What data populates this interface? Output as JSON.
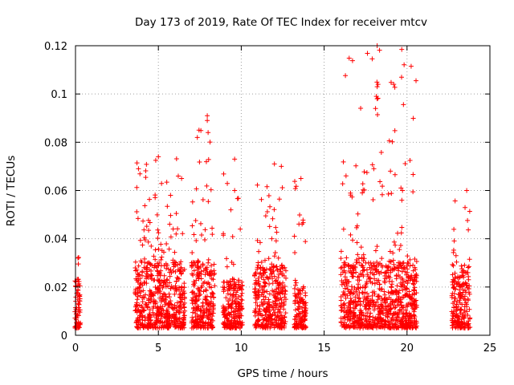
{
  "chart_data": {
    "type": "scatter",
    "title": "Day 173 of 2019, Rate Of TEC Index for receiver mtcv",
    "xlabel": "GPS time / hours",
    "ylabel": "ROTI / TECUs",
    "xlim": [
      0,
      25
    ],
    "ylim": [
      0,
      0.12
    ],
    "xticks": [
      0,
      5,
      10,
      15,
      20,
      25
    ],
    "xtick_labels": [
      "0",
      "5",
      "10",
      "15",
      "20",
      "25"
    ],
    "yticks": [
      0,
      0.02,
      0.04,
      0.06,
      0.08,
      0.1,
      0.12
    ],
    "ytick_labels": [
      "0",
      "0.02",
      "0.04",
      "0.06",
      "0.08",
      "0.1",
      "0.12"
    ],
    "grid": true,
    "marker": "+",
    "color": "#ff0000",
    "clusters": [
      {
        "x": [
          -0.05,
          0.3
        ],
        "dense_max": 0.022,
        "peak": 0.033
      },
      {
        "x": [
          3.6,
          6.6
        ],
        "dense_max": 0.03,
        "peak": 0.074
      },
      {
        "x": [
          7.0,
          8.4
        ],
        "dense_max": 0.03,
        "peak": 0.091
      },
      {
        "x": [
          8.9,
          10.1
        ],
        "dense_max": 0.022,
        "peak": 0.074
      },
      {
        "x": [
          10.8,
          12.7
        ],
        "dense_max": 0.028,
        "peak": 0.071
      },
      {
        "x": [
          13.2,
          13.9
        ],
        "dense_max": 0.02,
        "peak": 0.065
      },
      {
        "x": [
          16.0,
          20.6
        ],
        "dense_max": 0.03,
        "peak": 0.12
      },
      {
        "x": [
          22.7,
          23.8
        ],
        "dense_max": 0.026,
        "peak": 0.06
      }
    ],
    "highlights": [
      {
        "x": 18.2,
        "y": 0.12
      },
      {
        "x": 18.25,
        "y": 0.104
      },
      {
        "x": 18.2,
        "y": 0.103
      },
      {
        "x": 18.15,
        "y": 0.099
      },
      {
        "x": 18.2,
        "y": 0.098
      },
      {
        "x": 18.1,
        "y": 0.094
      },
      {
        "x": 7.95,
        "y": 0.091
      },
      {
        "x": 7.95,
        "y": 0.089
      },
      {
        "x": 8.0,
        "y": 0.084
      },
      {
        "x": 7.45,
        "y": 0.085
      },
      {
        "x": 7.35,
        "y": 0.082
      },
      {
        "x": 5.0,
        "y": 0.074
      },
      {
        "x": 9.6,
        "y": 0.073
      },
      {
        "x": 12.0,
        "y": 0.071
      },
      {
        "x": 18.0,
        "y": 0.069
      },
      {
        "x": 19.0,
        "y": 0.068
      },
      {
        "x": 3.8,
        "y": 0.069
      },
      {
        "x": 6.2,
        "y": 0.066
      },
      {
        "x": 6.4,
        "y": 0.065
      },
      {
        "x": 13.6,
        "y": 0.065
      },
      {
        "x": 23.6,
        "y": 0.06
      },
      {
        "x": 9.6,
        "y": 0.06
      },
      {
        "x": 17.3,
        "y": 0.059
      },
      {
        "x": 0.15,
        "y": 0.032
      }
    ]
  }
}
